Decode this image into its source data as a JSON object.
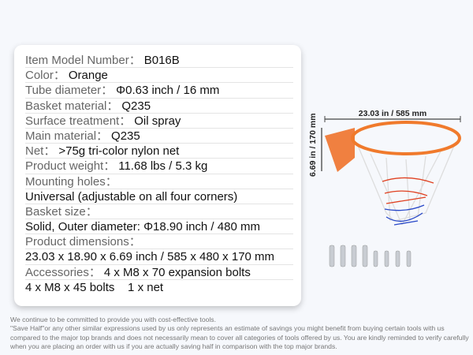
{
  "specs": [
    {
      "label": "Item Model Number：",
      "value": "B016B"
    },
    {
      "label": "Color：",
      "value": "Orange"
    },
    {
      "label": "Tube diameter：",
      "value": "Φ0.63 inch / 16 mm"
    },
    {
      "label": "Basket material：",
      "value": "Q235"
    },
    {
      "label": "Surface treatment：",
      "value": "Oil spray"
    },
    {
      "label": "Main material：",
      "value": "Q235"
    },
    {
      "label": "Net：",
      "value": ">75g tri-color nylon net"
    },
    {
      "label": "Product weight：",
      "value": "11.68 lbs / 5.3 kg"
    },
    {
      "label": "Mounting holes：",
      "value": ""
    },
    {
      "label": "",
      "value": "Universal (adjustable on all four corners)"
    },
    {
      "label": "Basket size：",
      "value": ""
    },
    {
      "label": "",
      "value": "Solid, Outer diameter: Φ18.90 inch / 480 mm"
    },
    {
      "label": "Product dimensions：",
      "value": ""
    },
    {
      "label": "",
      "value": "23.03 x 18.90 x 6.69 inch / 585 x 480 x 170 mm"
    },
    {
      "label": "Accessories：",
      "value": "4 x M8 x 70 expansion bolts"
    },
    {
      "label": "",
      "value": "4 x M8 x 45 bolts    1 x net"
    }
  ],
  "figure": {
    "width_label": "23.03 in / 585 mm",
    "height_label": "6.69 in / 170 mm"
  },
  "disclaimer": [
    "We continue to be committed to provide you with cost-effective tools.",
    "\"Save Half\"or any other similar expressions used by us only represents an estimate of savings you might benefit from buying certain tools with us compared to the major top brands and does not necessarily mean to cover all categories of tools offered by us. You are kindly reminded to verify carefully when you are placing an order with us if you are actually saving half in comparison with the top major brands."
  ],
  "colors": {
    "rim": "#f07a2c",
    "net_red": "#e04020",
    "net_blue": "#2848c8"
  }
}
